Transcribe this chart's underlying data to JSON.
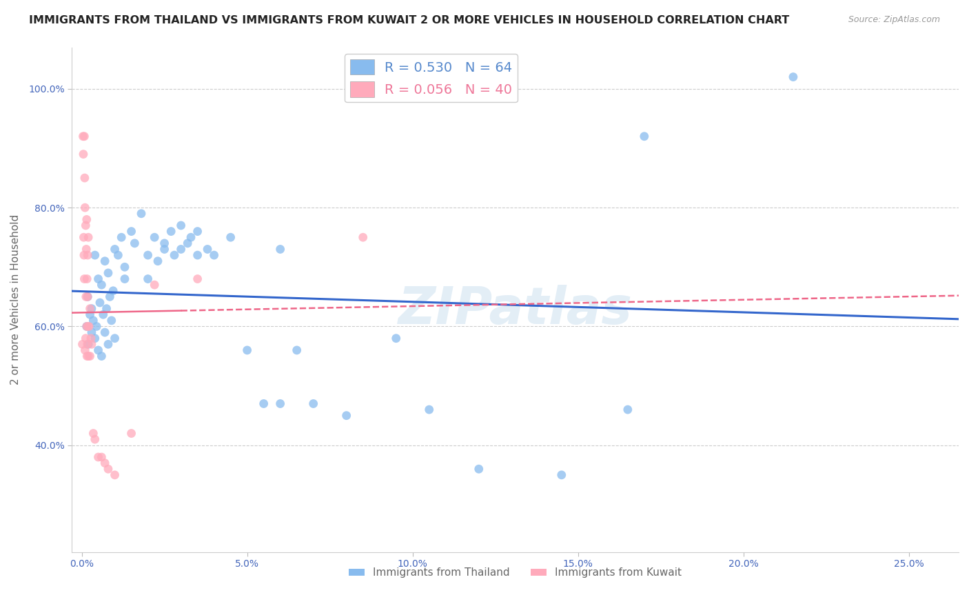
{
  "title": "IMMIGRANTS FROM THAILAND VS IMMIGRANTS FROM KUWAIT 2 OR MORE VEHICLES IN HOUSEHOLD CORRELATION CHART",
  "source": "Source: ZipAtlas.com",
  "ylabel": "2 or more Vehicles in Household",
  "x_tick_vals": [
    0.0,
    5.0,
    10.0,
    15.0,
    20.0,
    25.0
  ],
  "y_tick_vals": [
    40.0,
    60.0,
    80.0,
    100.0
  ],
  "xlim": [
    -0.3,
    26.5
  ],
  "ylim": [
    22.0,
    107.0
  ],
  "legend_entries": [
    {
      "label": "R = 0.530   N = 64",
      "color": "#5588cc"
    },
    {
      "label": "R = 0.056   N = 40",
      "color": "#ee7799"
    }
  ],
  "watermark": "ZIPatlas",
  "background_color": "#ffffff",
  "grid_color": "#cccccc",
  "title_fontsize": 11.5,
  "axis_label_fontsize": 11,
  "tick_fontsize": 10,
  "tick_color": "#4466bb",
  "thailand_color": "#88bbee",
  "kuwait_color": "#ffaabb",
  "thailand_line_color": "#3366cc",
  "kuwait_line_color": "#ee6688",
  "thailand_line_style": "-",
  "kuwait_line_style": "--",
  "thailand_scatter_x": [
    0.15,
    0.18,
    0.2,
    0.25,
    0.3,
    0.3,
    0.35,
    0.4,
    0.4,
    0.45,
    0.5,
    0.5,
    0.55,
    0.6,
    0.6,
    0.65,
    0.7,
    0.7,
    0.75,
    0.8,
    0.8,
    0.85,
    0.9,
    0.95,
    1.0,
    1.0,
    1.1,
    1.2,
    1.3,
    1.3,
    1.5,
    1.6,
    1.8,
    2.0,
    2.0,
    2.2,
    2.3,
    2.5,
    2.5,
    2.7,
    2.8,
    3.0,
    3.0,
    3.2,
    3.3,
    3.5,
    3.5,
    3.8,
    4.0,
    4.5,
    5.0,
    5.5,
    6.0,
    6.0,
    6.5,
    7.0,
    8.0,
    9.5,
    10.5,
    12.0,
    14.5,
    16.5,
    17.0,
    21.5
  ],
  "thailand_scatter_y": [
    60.0,
    65.0,
    57.0,
    62.0,
    59.0,
    63.0,
    61.0,
    58.0,
    72.0,
    60.0,
    56.0,
    68.0,
    64.0,
    55.0,
    67.0,
    62.0,
    59.0,
    71.0,
    63.0,
    57.0,
    69.0,
    65.0,
    61.0,
    66.0,
    58.0,
    73.0,
    72.0,
    75.0,
    70.0,
    68.0,
    76.0,
    74.0,
    79.0,
    72.0,
    68.0,
    75.0,
    71.0,
    74.0,
    73.0,
    76.0,
    72.0,
    73.0,
    77.0,
    74.0,
    75.0,
    72.0,
    76.0,
    73.0,
    72.0,
    75.0,
    56.0,
    47.0,
    47.0,
    73.0,
    56.0,
    47.0,
    45.0,
    58.0,
    46.0,
    36.0,
    35.0,
    46.0,
    92.0,
    102.0
  ],
  "kuwait_scatter_x": [
    0.02,
    0.04,
    0.05,
    0.06,
    0.07,
    0.08,
    0.08,
    0.09,
    0.1,
    0.1,
    0.12,
    0.12,
    0.13,
    0.14,
    0.15,
    0.15,
    0.16,
    0.16,
    0.17,
    0.18,
    0.18,
    0.19,
    0.2,
    0.2,
    0.22,
    0.25,
    0.25,
    0.28,
    0.3,
    0.35,
    0.4,
    0.5,
    0.6,
    0.7,
    0.8,
    1.0,
    1.5,
    2.2,
    3.5,
    8.5
  ],
  "kuwait_scatter_y": [
    57.0,
    92.0,
    89.0,
    75.0,
    72.0,
    92.0,
    68.0,
    85.0,
    56.0,
    80.0,
    77.0,
    58.0,
    65.0,
    73.0,
    78.0,
    60.0,
    55.0,
    68.0,
    57.0,
    65.0,
    72.0,
    60.0,
    75.0,
    55.0,
    60.0,
    63.0,
    55.0,
    58.0,
    57.0,
    42.0,
    41.0,
    38.0,
    38.0,
    37.0,
    36.0,
    35.0,
    42.0,
    67.0,
    68.0,
    75.0
  ]
}
